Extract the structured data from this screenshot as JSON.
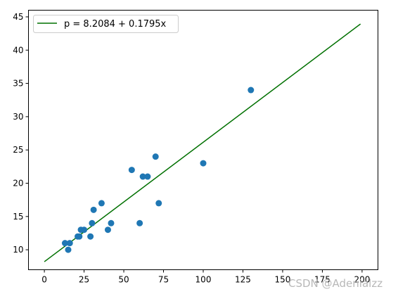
{
  "chart_data": {
    "type": "scatter",
    "title": "",
    "xlabel": "",
    "ylabel": "",
    "xlim": [
      -10,
      210
    ],
    "ylim": [
      7,
      46
    ],
    "x_ticks": [
      0,
      25,
      50,
      75,
      100,
      125,
      150,
      175,
      200
    ],
    "y_ticks": [
      10,
      15,
      20,
      25,
      30,
      35,
      40,
      45
    ],
    "grid": false,
    "legend": {
      "placement": "top-left",
      "entries": [
        "p = 8.2084 + 0.1795x"
      ]
    },
    "series": [
      {
        "kind": "points",
        "color": "#1f77b4",
        "x": [
          13,
          15,
          16,
          21,
          22,
          23,
          25,
          29,
          30,
          31,
          36,
          40,
          42,
          55,
          60,
          62,
          65,
          70,
          72,
          100,
          130
        ],
        "y": [
          11,
          10,
          11,
          12,
          12,
          13,
          13,
          12,
          14,
          16,
          17,
          13,
          14,
          22,
          14,
          21,
          21,
          24,
          17,
          23,
          34
        ]
      },
      {
        "kind": "line",
        "name": "p = 8.2084 + 0.1795x",
        "color": "#007000",
        "intercept": 8.2084,
        "slope": 0.1795,
        "x_range": [
          0,
          199
        ]
      }
    ]
  },
  "watermark": "CSDN @Adenialzz"
}
